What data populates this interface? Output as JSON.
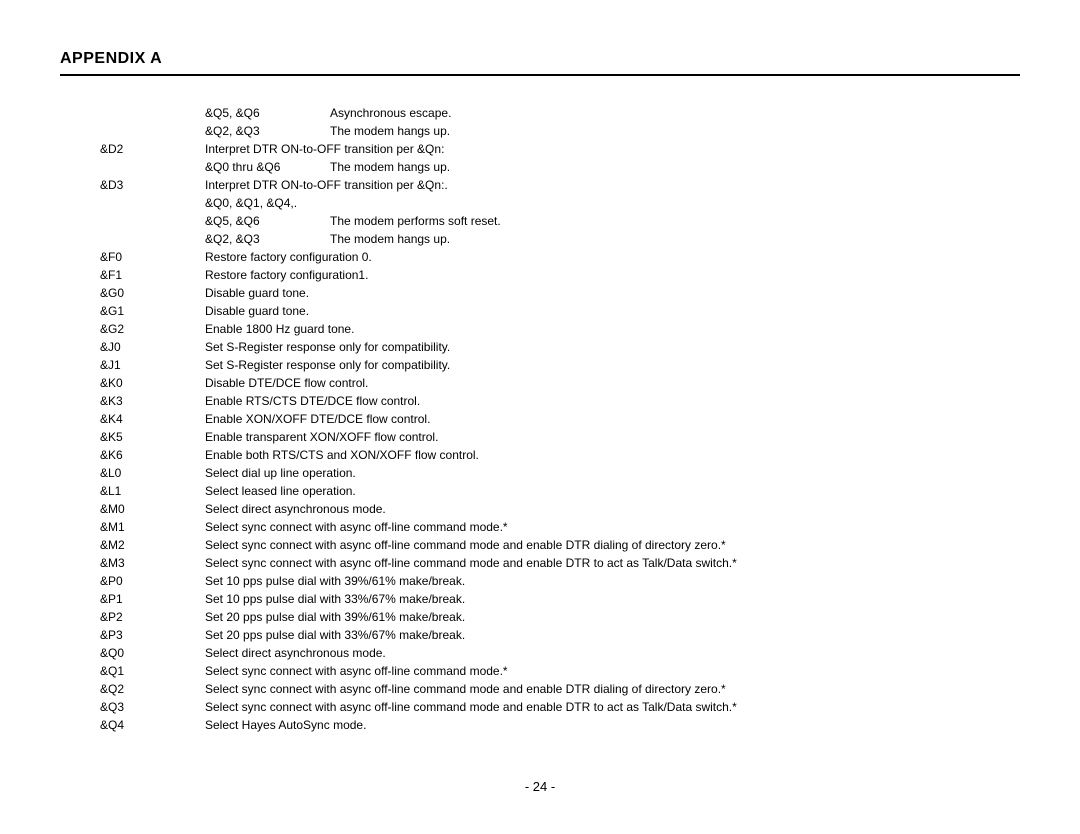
{
  "header": "APPENDIX A",
  "footer": "-  24  -",
  "rows": [
    {
      "cmd": "",
      "sub": "&Q5, &Q6",
      "desc": "Asynchronous escape."
    },
    {
      "cmd": "",
      "sub": "&Q2, &Q3",
      "desc": "The modem hangs up."
    },
    {
      "cmd": "&D2",
      "sub": "Interpret DTR ON-to-OFF transition per &Qn:",
      "desc": "",
      "span": true
    },
    {
      "cmd": "",
      "sub": "&Q0 thru &Q6",
      "desc": "The modem hangs up."
    },
    {
      "cmd": "&D3",
      "sub": "Interpret DTR ON-to-OFF transition per &Qn:.",
      "desc": "",
      "span": true
    },
    {
      "cmd": "",
      "sub": "&Q0, &Q1, &Q4,.",
      "desc": ""
    },
    {
      "cmd": "",
      "sub": "&Q5, &Q6",
      "desc": "The modem performs soft reset."
    },
    {
      "cmd": "",
      "sub": "&Q2, &Q3",
      "desc": "The modem hangs up."
    },
    {
      "cmd": "&F0",
      "sub": "Restore factory configuration 0.",
      "desc": "",
      "span": true
    },
    {
      "cmd": "&F1",
      "sub": "Restore factory configuration1.",
      "desc": "",
      "span": true
    },
    {
      "cmd": "&G0",
      "sub": "Disable guard tone.",
      "desc": "",
      "span": true
    },
    {
      "cmd": "&G1",
      "sub": "Disable guard tone.",
      "desc": "",
      "span": true
    },
    {
      "cmd": "&G2",
      "sub": "Enable 1800 Hz guard tone.",
      "desc": "",
      "span": true
    },
    {
      "cmd": "&J0",
      "sub": "Set S-Register response only for compatibility.",
      "desc": "",
      "span": true
    },
    {
      "cmd": "&J1",
      "sub": "Set S-Register response only for compatibility.",
      "desc": "",
      "span": true
    },
    {
      "cmd": "&K0",
      "sub": "Disable DTE/DCE flow control.",
      "desc": "",
      "span": true
    },
    {
      "cmd": "&K3",
      "sub": "Enable RTS/CTS DTE/DCE flow control.",
      "desc": "",
      "span": true
    },
    {
      "cmd": "&K4",
      "sub": "Enable XON/XOFF DTE/DCE flow control.",
      "desc": "",
      "span": true
    },
    {
      "cmd": "&K5",
      "sub": "Enable transparent XON/XOFF flow control.",
      "desc": "",
      "span": true
    },
    {
      "cmd": "&K6",
      "sub": "Enable both RTS/CTS and XON/XOFF flow control.",
      "desc": "",
      "span": true
    },
    {
      "cmd": "&L0",
      "sub": "Select dial up line operation.",
      "desc": "",
      "span": true
    },
    {
      "cmd": "&L1",
      "sub": "Select leased line operation.",
      "desc": "",
      "span": true
    },
    {
      "cmd": "&M0",
      "sub": "Select direct asynchronous mode.",
      "desc": "",
      "span": true
    },
    {
      "cmd": "&M1",
      "sub": "Select sync connect with async off-line command mode.*",
      "desc": "",
      "span": true
    },
    {
      "cmd": "&M2",
      "sub": "Select sync connect with async off-line command mode and enable DTR dialing of directory zero.*",
      "desc": "",
      "span": true
    },
    {
      "cmd": "&M3",
      "sub": "Select sync connect with async off-line command mode and enable DTR to act as Talk/Data switch.*",
      "desc": "",
      "span": true
    },
    {
      "cmd": "&P0",
      "sub": "Set 10 pps pulse dial with 39%/61% make/break.",
      "desc": "",
      "span": true
    },
    {
      "cmd": "&P1",
      "sub": "Set 10 pps pulse dial with 33%/67% make/break.",
      "desc": "",
      "span": true
    },
    {
      "cmd": "&P2",
      "sub": "Set 20 pps pulse dial with 39%/61% make/break.",
      "desc": "",
      "span": true
    },
    {
      "cmd": "&P3",
      "sub": "Set 20 pps pulse dial with 33%/67% make/break.",
      "desc": "",
      "span": true
    },
    {
      "cmd": "&Q0",
      "sub": "Select direct asynchronous mode.",
      "desc": "",
      "span": true
    },
    {
      "cmd": "&Q1",
      "sub": "Select sync connect with async off-line command mode.*",
      "desc": "",
      "span": true
    },
    {
      "cmd": "&Q2",
      "sub": "Select sync connect with async off-line command mode and enable DTR dialing of directory zero.*",
      "desc": "",
      "span": true
    },
    {
      "cmd": "&Q3",
      "sub": "Select sync connect with async off-line command mode and enable DTR to act as Talk/Data switch.*",
      "desc": "",
      "span": true
    },
    {
      "cmd": "&Q4",
      "sub": "Select Hayes AutoSync mode.",
      "desc": "",
      "span": true
    }
  ]
}
